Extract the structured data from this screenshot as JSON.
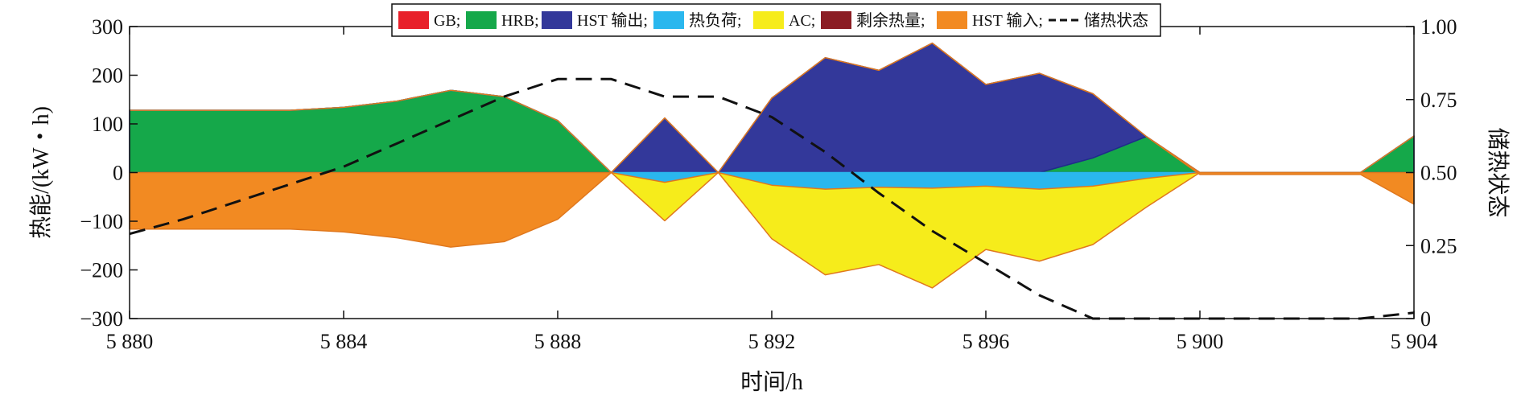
{
  "chart_data": {
    "type": "area",
    "xlabel": "时间/h",
    "ylabel_left": "热能/(kW・h)",
    "ylabel_right": "储热状态",
    "xlim": [
      5880,
      5904
    ],
    "ylim_left": [
      -300,
      300
    ],
    "ylim_right": [
      0,
      1
    ],
    "x_ticks": [
      5880,
      5884,
      5888,
      5892,
      5896,
      5900,
      5904
    ],
    "x_tick_labels": [
      "5 880",
      "5 884",
      "5 888",
      "5 892",
      "5 896",
      "5 900",
      "5 904"
    ],
    "y_left_ticks": [
      300,
      200,
      100,
      0,
      -100,
      -200,
      -300
    ],
    "y_left_tick_labels": [
      "300",
      "200",
      "100",
      "0",
      "−100",
      "−200",
      "−300"
    ],
    "y_right_ticks": [
      1,
      0.75,
      0.5,
      0.25,
      0
    ],
    "y_right_tick_labels": [
      "1.00",
      "0.75",
      "0.50",
      "0.25",
      "0"
    ],
    "legend_position": "top-center",
    "x": [
      5880,
      5881,
      5882,
      5883,
      5884,
      5885,
      5886,
      5887,
      5888,
      5889,
      5890,
      5891,
      5892,
      5893,
      5894,
      5895,
      5896,
      5897,
      5898,
      5899,
      5900,
      5901,
      5902,
      5903,
      5904
    ],
    "series": [
      {
        "name": "GB;",
        "color": "#e8202a",
        "kind": "area",
        "values": [
          0,
          0,
          0,
          0,
          0,
          0,
          0,
          0,
          0,
          0,
          0,
          0,
          0,
          0,
          0,
          0,
          0,
          0,
          0,
          0,
          0,
          0,
          0,
          0,
          0
        ]
      },
      {
        "name": "HRB;",
        "color": "#15a84a",
        "kind": "area",
        "values": [
          128,
          128,
          128,
          128,
          134,
          147,
          169,
          156,
          107,
          0,
          0,
          0,
          0,
          0,
          0,
          0,
          0,
          0,
          30,
          74,
          0,
          0,
          0,
          0,
          75
        ]
      },
      {
        "name": "HST 输出;",
        "color": "#33389a",
        "kind": "area",
        "values": [
          0,
          0,
          0,
          0,
          0,
          0,
          0,
          0,
          0,
          0,
          112,
          0,
          153,
          236,
          210,
          266,
          181,
          204,
          132,
          0,
          0,
          0,
          0,
          0,
          0
        ]
      },
      {
        "name": "热负荷;",
        "color": "#2ab7ee",
        "kind": "area",
        "values": [
          0,
          0,
          0,
          0,
          0,
          0,
          0,
          0,
          0,
          0,
          -20,
          0,
          -26,
          -34,
          -30,
          -32,
          -28,
          -34,
          -28,
          -12,
          0,
          0,
          0,
          0,
          0
        ]
      },
      {
        "name": "AC;",
        "color": "#f6ec1b",
        "kind": "area",
        "values": [
          0,
          0,
          0,
          0,
          0,
          0,
          0,
          0,
          0,
          0,
          -79,
          0,
          -110,
          -176,
          -159,
          -205,
          -130,
          -148,
          -120,
          -59,
          0,
          0,
          0,
          0,
          0
        ]
      },
      {
        "name": "剩余热量;",
        "color": "#8b1d24",
        "kind": "area",
        "values": [
          0,
          0,
          0,
          0,
          0,
          0,
          0,
          0,
          0,
          0,
          0,
          0,
          0,
          0,
          0,
          0,
          0,
          0,
          0,
          0,
          0,
          0,
          0,
          0,
          0
        ]
      },
      {
        "name": "HST 输入;",
        "color": "#f28a22",
        "kind": "area",
        "values": [
          -116,
          -116,
          -116,
          -116,
          -122,
          -134,
          -153,
          -142,
          -96,
          0,
          0,
          0,
          0,
          0,
          0,
          0,
          0,
          0,
          0,
          0,
          -4,
          -4,
          -4,
          -4,
          -65
        ]
      },
      {
        "name": "储热状态",
        "color": "#111111",
        "kind": "line",
        "axis": "right",
        "values": [
          0.29,
          0.34,
          0.4,
          0.46,
          0.52,
          0.6,
          0.68,
          0.76,
          0.82,
          0.82,
          0.76,
          0.76,
          0.69,
          0.57,
          0.43,
          0.3,
          0.19,
          0.08,
          0.0,
          0.0,
          0.0,
          0.0,
          0.0,
          0.0,
          0.02
        ]
      }
    ]
  }
}
